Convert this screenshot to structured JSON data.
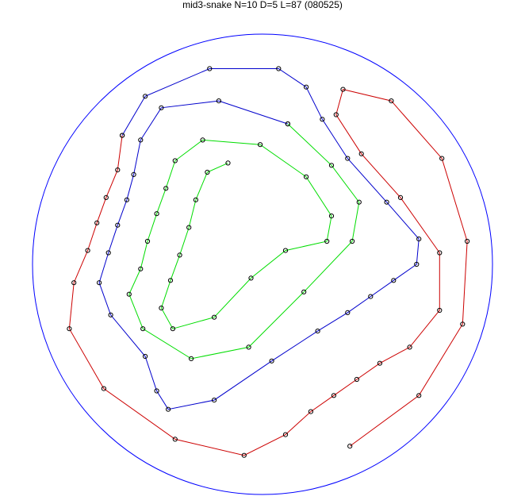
{
  "chart_data": {
    "type": "line",
    "title": "mid3-snake N=10 D=5 L=87 (080525)",
    "xlabel": "",
    "ylabel": "",
    "xlim": [
      -1,
      1
    ],
    "ylim": [
      -1,
      1
    ],
    "grid": false,
    "boundary": {
      "shape": "circle",
      "center": [
        0,
        0
      ],
      "radius": 1,
      "color": "#0000ff"
    },
    "marker": {
      "shape": "circle",
      "color": "#000000"
    },
    "series": [
      {
        "color": "#cc0000",
        "points": [
          [
            0.38,
            -0.79
          ],
          [
            0.68,
            -0.57
          ],
          [
            0.87,
            -0.26
          ],
          [
            0.89,
            0.1
          ],
          [
            0.78,
            0.46
          ],
          [
            0.56,
            0.71
          ],
          [
            0.35,
            0.76
          ],
          [
            0.32,
            0.65
          ],
          [
            0.43,
            0.48
          ],
          [
            0.6,
            0.29
          ],
          [
            0.77,
            0.05
          ],
          [
            0.77,
            -0.2
          ],
          [
            0.64,
            -0.36
          ],
          [
            0.51,
            -0.43
          ],
          [
            0.41,
            -0.5
          ],
          [
            0.31,
            -0.57
          ],
          [
            0.21,
            -0.64
          ],
          [
            0.1,
            -0.74
          ],
          [
            -0.08,
            -0.83
          ],
          [
            -0.38,
            -0.76
          ],
          [
            -0.69,
            -0.54
          ],
          [
            -0.84,
            -0.28
          ],
          [
            -0.82,
            -0.08
          ],
          [
            -0.76,
            0.06
          ],
          [
            -0.72,
            0.18
          ],
          [
            -0.68,
            0.29
          ],
          [
            -0.63,
            0.41
          ],
          [
            -0.61,
            0.56
          ]
        ]
      },
      {
        "color": "#0000cc",
        "points": [
          [
            -0.61,
            0.56
          ],
          [
            -0.51,
            0.73
          ],
          [
            -0.23,
            0.85
          ],
          [
            0.07,
            0.85
          ],
          [
            0.19,
            0.77
          ],
          [
            0.26,
            0.63
          ],
          [
            0.37,
            0.46
          ],
          [
            0.54,
            0.27
          ],
          [
            0.68,
            0.11
          ],
          [
            0.67,
            0.0
          ],
          [
            0.57,
            -0.07
          ],
          [
            0.47,
            -0.14
          ],
          [
            0.37,
            -0.21
          ],
          [
            0.24,
            -0.29
          ],
          [
            0.04,
            -0.42
          ],
          [
            -0.21,
            -0.59
          ],
          [
            -0.41,
            -0.63
          ],
          [
            -0.46,
            -0.55
          ],
          [
            -0.51,
            -0.4
          ],
          [
            -0.66,
            -0.22
          ],
          [
            -0.71,
            -0.08
          ],
          [
            -0.67,
            0.05
          ],
          [
            -0.63,
            0.17
          ],
          [
            -0.59,
            0.28
          ],
          [
            -0.56,
            0.39
          ],
          [
            -0.53,
            0.54
          ],
          [
            -0.44,
            0.68
          ],
          [
            -0.19,
            0.71
          ],
          [
            0.11,
            0.61
          ]
        ]
      },
      {
        "color": "#00dd00",
        "points": [
          [
            0.11,
            0.61
          ],
          [
            0.3,
            0.43
          ],
          [
            0.42,
            0.27
          ],
          [
            0.39,
            0.1
          ],
          [
            0.18,
            -0.12
          ],
          [
            -0.06,
            -0.36
          ],
          [
            -0.31,
            -0.41
          ],
          [
            -0.52,
            -0.28
          ],
          [
            -0.58,
            -0.13
          ],
          [
            -0.53,
            -0.02
          ],
          [
            -0.5,
            0.1
          ],
          [
            -0.46,
            0.22
          ],
          [
            -0.42,
            0.33
          ],
          [
            -0.38,
            0.45
          ],
          [
            -0.26,
            0.54
          ],
          [
            -0.01,
            0.52
          ],
          [
            0.19,
            0.38
          ],
          [
            0.3,
            0.21
          ],
          [
            0.28,
            0.1
          ],
          [
            0.1,
            0.06
          ],
          [
            -0.05,
            -0.06
          ],
          [
            -0.21,
            -0.23
          ],
          [
            -0.39,
            -0.28
          ],
          [
            -0.44,
            -0.19
          ],
          [
            -0.4,
            -0.07
          ],
          [
            -0.36,
            0.04
          ],
          [
            -0.32,
            0.16
          ],
          [
            -0.29,
            0.28
          ],
          [
            -0.24,
            0.4
          ],
          [
            -0.15,
            0.44
          ]
        ]
      }
    ]
  }
}
